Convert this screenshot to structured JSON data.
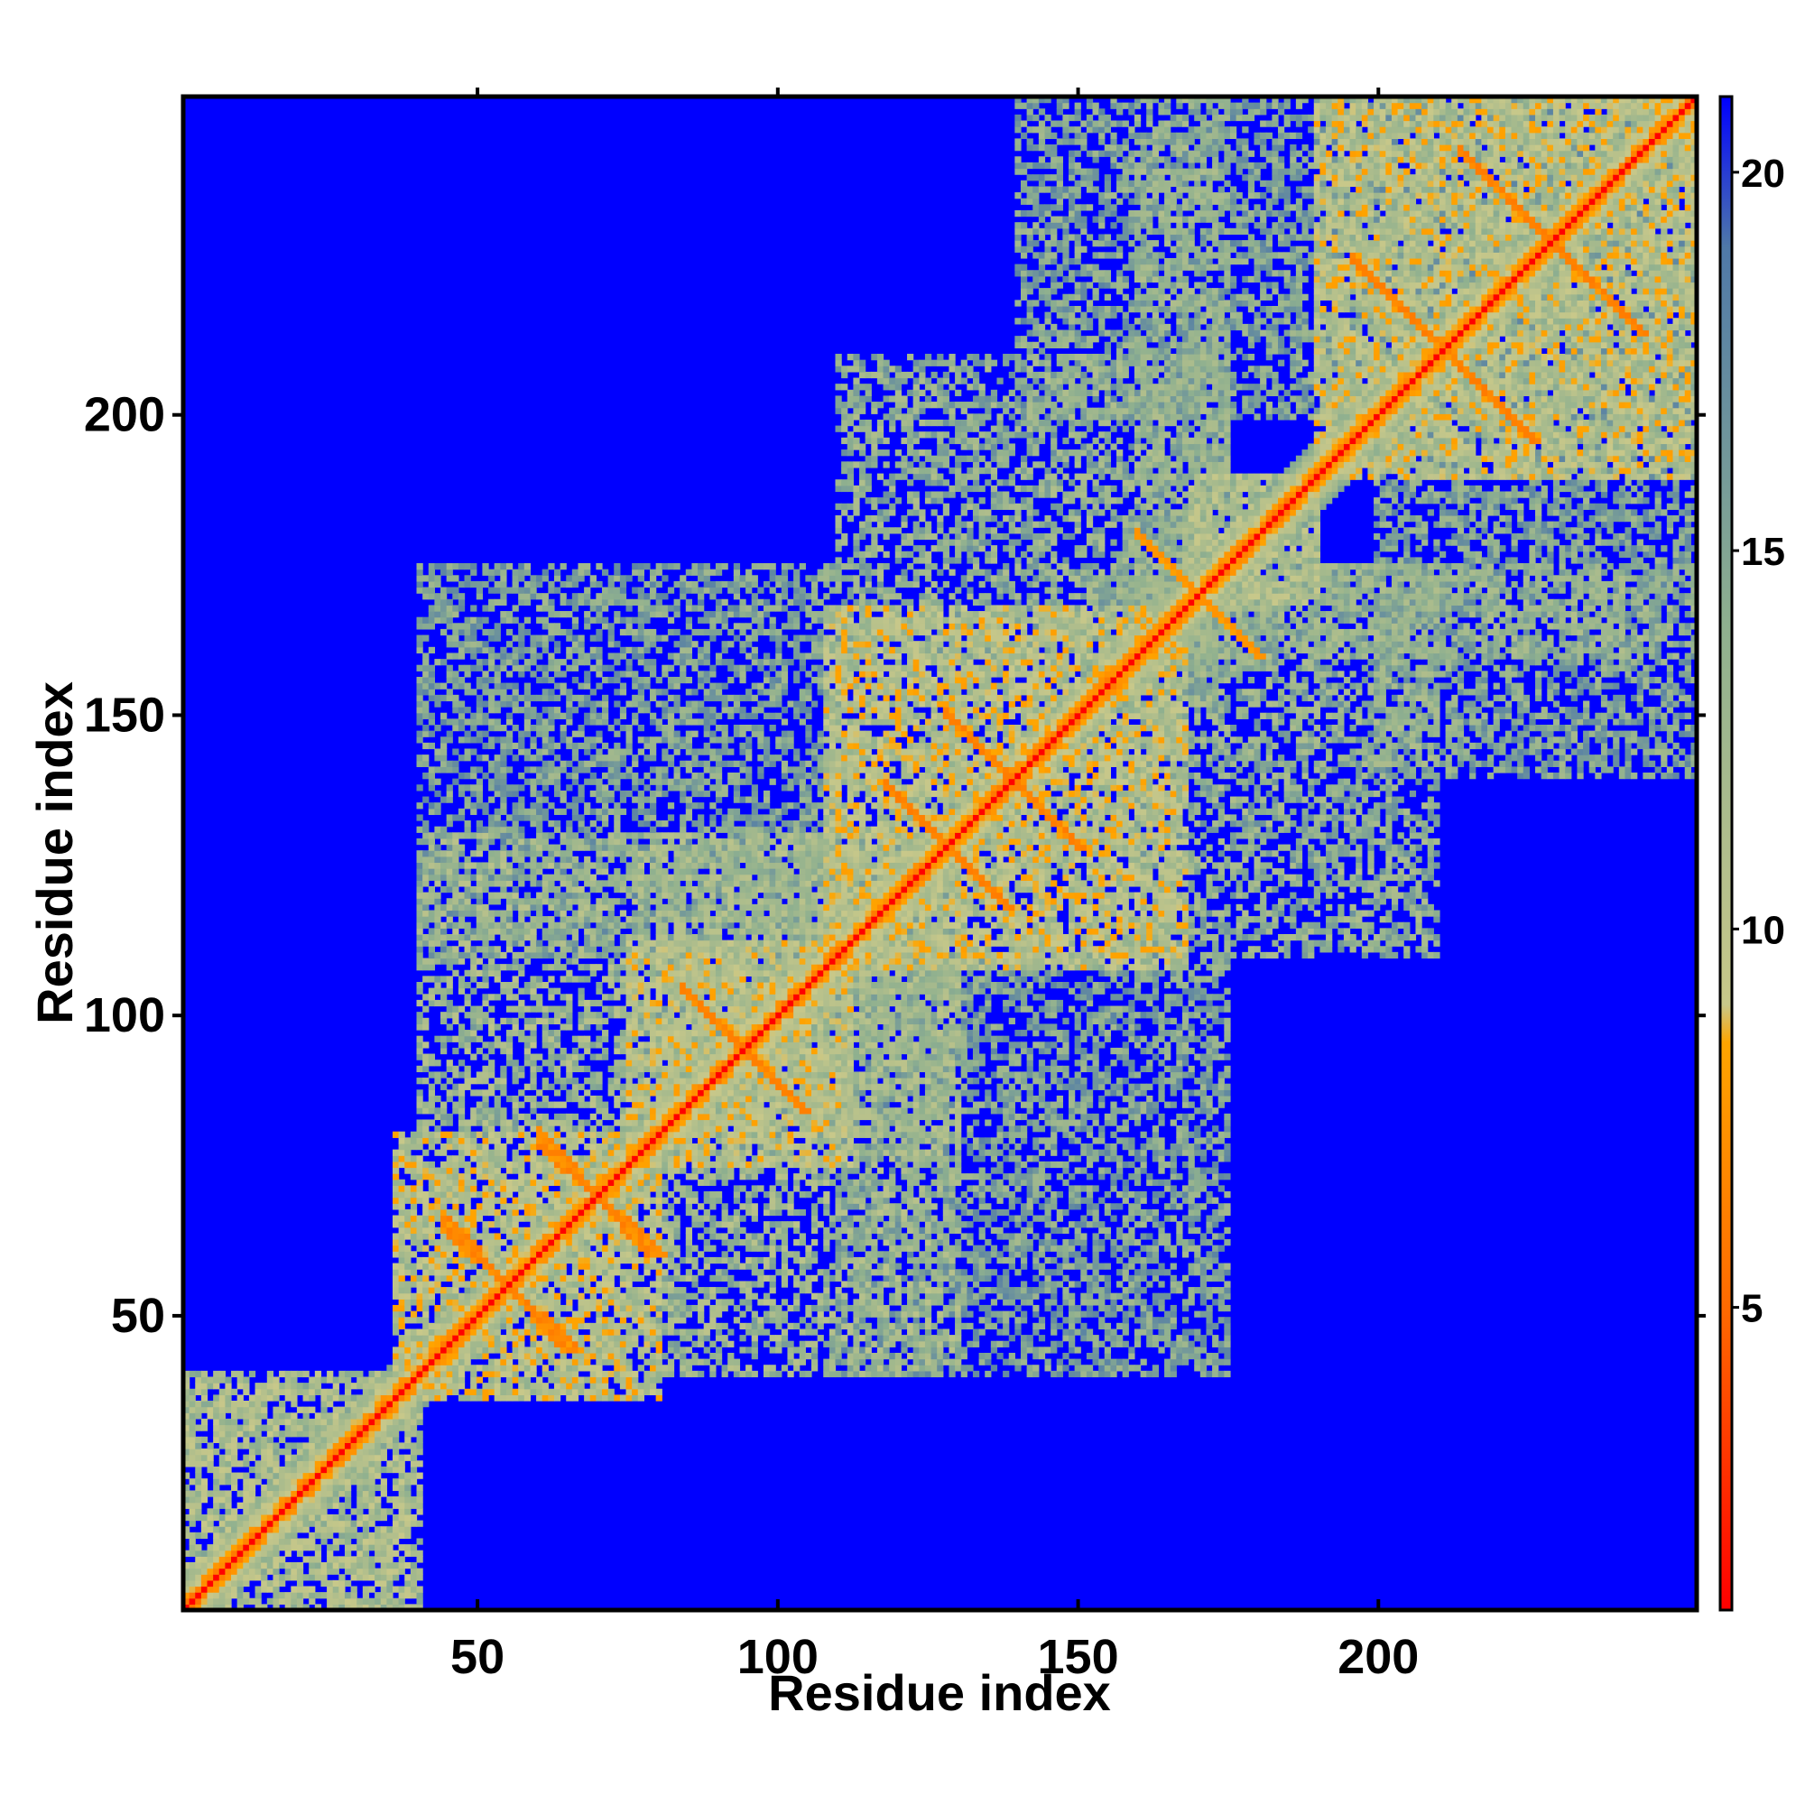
{
  "chart_data": {
    "type": "heatmap",
    "title": "",
    "xlabel": "Residue index",
    "ylabel": "Residue index",
    "xlim": [
      1,
      253
    ],
    "ylim": [
      1,
      253
    ],
    "x_ticks": [
      50,
      100,
      150,
      200
    ],
    "y_ticks": [
      50,
      100,
      150,
      200
    ],
    "colorbar": {
      "range": [
        1,
        21
      ],
      "ticks": [
        5,
        10,
        15,
        20
      ],
      "stops": [
        {
          "value": 1,
          "color": "#ff0000"
        },
        {
          "value": 5,
          "color": "#ff6a00"
        },
        {
          "value": 8.5,
          "color": "#ffa500"
        },
        {
          "value": 9,
          "color": "#c8c88a"
        },
        {
          "value": 14,
          "color": "#8fb08f"
        },
        {
          "value": 19,
          "color": "#4f79a8"
        },
        {
          "value": 21,
          "color": "#0000ff"
        }
      ]
    },
    "background_value": 21,
    "diagonal_value": 1,
    "contact_blocks": [
      {
        "x": [
          1,
          40
        ],
        "y": [
          1,
          40
        ],
        "value": 12
      },
      {
        "x": [
          36,
          80
        ],
        "y": [
          36,
          80
        ],
        "value": 11
      },
      {
        "x": [
          75,
          112
        ],
        "y": [
          75,
          112
        ],
        "value": 11
      },
      {
        "x": [
          108,
          168
        ],
        "y": [
          108,
          168
        ],
        "value": 11
      },
      {
        "x": [
          168,
          190
        ],
        "y": [
          168,
          190
        ],
        "value": 12
      },
      {
        "x": [
          190,
          253
        ],
        "y": [
          190,
          253
        ],
        "value": 11
      },
      {
        "x": [
          40,
          130
        ],
        "y": [
          80,
          130
        ],
        "value": 13
      },
      {
        "x": [
          110,
          175
        ],
        "y": [
          160,
          210
        ],
        "value": 14
      },
      {
        "x": [
          150,
          253
        ],
        "y": [
          160,
          175
        ],
        "value": 14
      },
      {
        "x": [
          140,
          253
        ],
        "y": [
          200,
          253
        ],
        "value": 15
      },
      {
        "x": [
          40,
          110
        ],
        "y": [
          110,
          175
        ],
        "value": 15
      }
    ],
    "off_diagonal_strands": [
      {
        "from": [
          44,
          64
        ],
        "to": [
          66,
          44
        ],
        "value": 6
      },
      {
        "from": [
          60,
          78
        ],
        "to": [
          80,
          60
        ],
        "value": 6
      },
      {
        "from": [
          84,
          104
        ],
        "to": [
          104,
          84
        ],
        "value": 6
      },
      {
        "from": [
          118,
          138
        ],
        "to": [
          138,
          118
        ],
        "value": 6
      },
      {
        "from": [
          128,
          150
        ],
        "to": [
          150,
          128
        ],
        "value": 6
      },
      {
        "from": [
          160,
          180
        ],
        "to": [
          180,
          160
        ],
        "value": 7
      },
      {
        "from": [
          196,
          226
        ],
        "to": [
          226,
          196
        ],
        "value": 6
      },
      {
        "from": [
          214,
          244
        ],
        "to": [
          244,
          214
        ],
        "value": 6
      }
    ]
  }
}
